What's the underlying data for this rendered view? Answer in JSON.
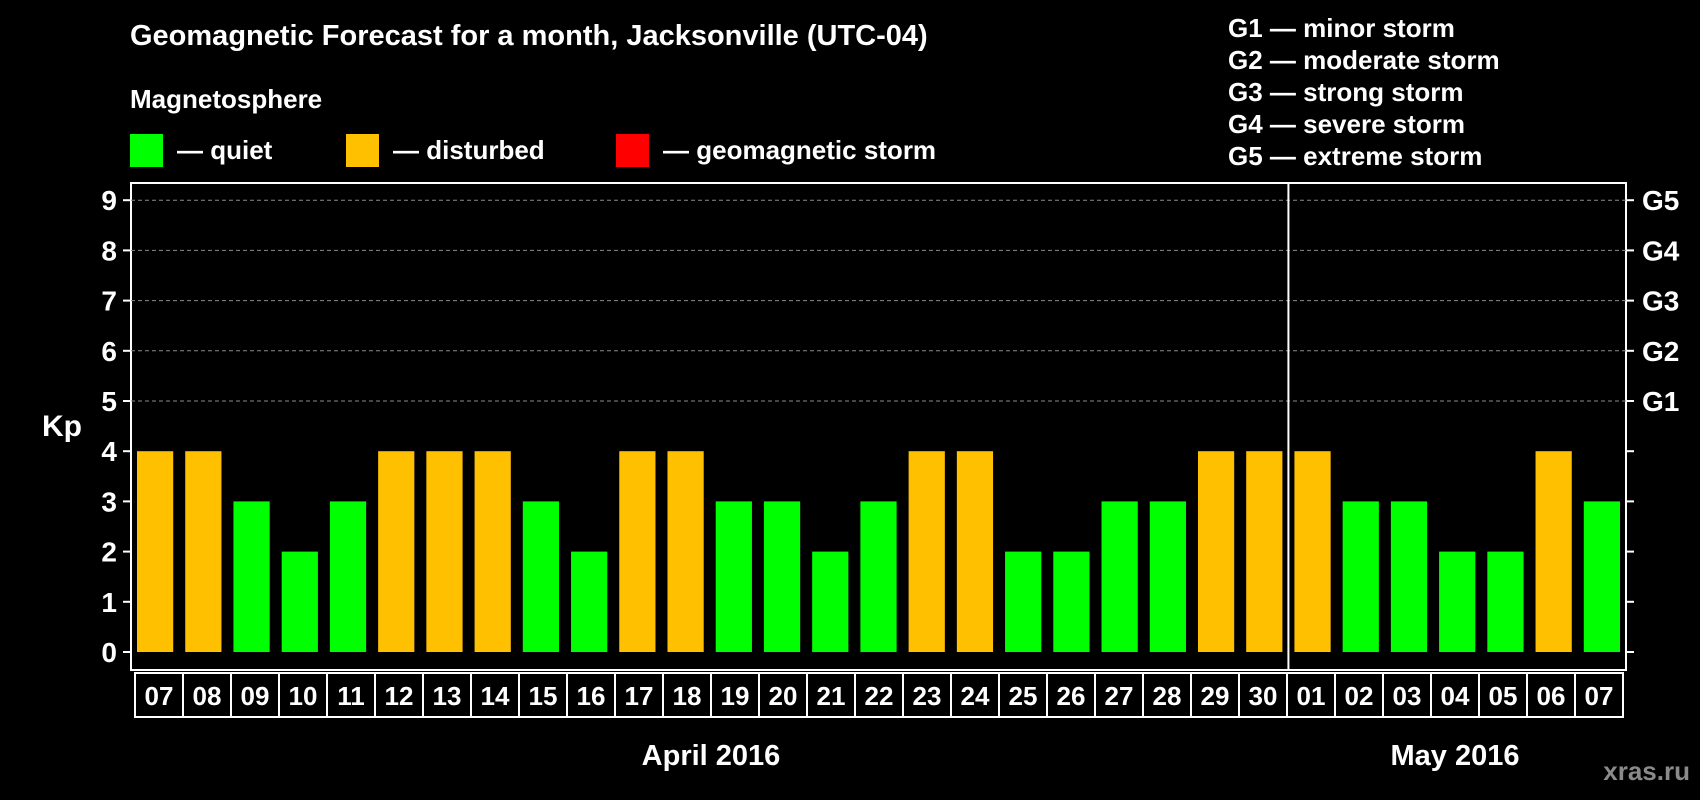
{
  "chart_data": {
    "type": "bar",
    "title": "Geomagnetic Forecast for a month, Jacksonville (UTC-04)",
    "subtitle": "Magnetosphere",
    "ylabel": "Kp",
    "ylim": [
      0,
      9
    ],
    "yticks": [
      "0",
      "1",
      "2",
      "3",
      "4",
      "5",
      "6",
      "7",
      "8",
      "9"
    ],
    "right_ticks": [
      {
        "kp": 5,
        "label": "G1"
      },
      {
        "kp": 6,
        "label": "G2"
      },
      {
        "kp": 7,
        "label": "G3"
      },
      {
        "kp": 8,
        "label": "G4"
      },
      {
        "kp": 9,
        "label": "G5"
      }
    ],
    "categories": [
      "07",
      "08",
      "09",
      "10",
      "11",
      "12",
      "13",
      "14",
      "15",
      "16",
      "17",
      "18",
      "19",
      "20",
      "21",
      "22",
      "23",
      "24",
      "25",
      "26",
      "27",
      "28",
      "29",
      "30",
      "01",
      "02",
      "03",
      "04",
      "05",
      "06",
      "07"
    ],
    "values": [
      4,
      4,
      3,
      2,
      3,
      4,
      4,
      4,
      3,
      2,
      4,
      4,
      3,
      3,
      2,
      3,
      4,
      4,
      2,
      2,
      3,
      3,
      4,
      4,
      4,
      3,
      3,
      2,
      2,
      4,
      3
    ],
    "colors": {
      "quiet": "#00ff00",
      "disturbed": "#ffc000",
      "storm": "#ff0000"
    },
    "months": [
      {
        "label": "April 2016",
        "from": 0,
        "to": 23
      },
      {
        "label": "May 2016",
        "from": 24,
        "to": 30
      }
    ],
    "legend": [
      {
        "label": "— quiet",
        "color": "#00ff00"
      },
      {
        "label": "— disturbed",
        "color": "#ffc000"
      },
      {
        "label": "— geomagnetic storm",
        "color": "#ff0000"
      }
    ],
    "g_scale": [
      "G1 — minor storm",
      "G2 — moderate storm",
      "G3 — strong storm",
      "G4 — severe storm",
      "G5 — extreme storm"
    ],
    "grid": true
  },
  "watermark": "xras.ru"
}
